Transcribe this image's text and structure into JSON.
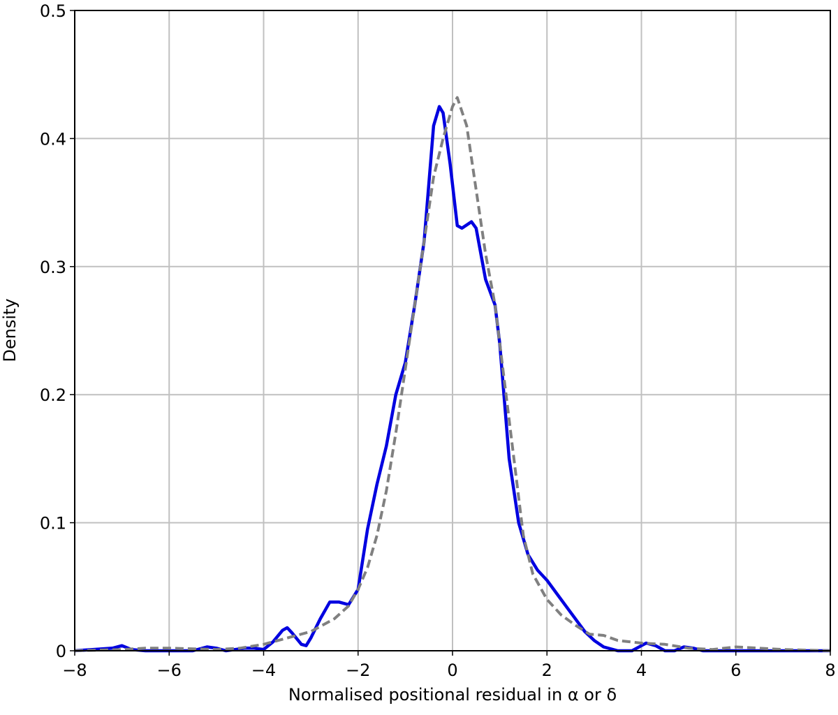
{
  "chart_data": {
    "type": "line",
    "xlabel": "Normalised positional residual in α or δ",
    "ylabel": "Density",
    "xlim": [
      -8,
      8
    ],
    "ylim": [
      0,
      0.5
    ],
    "xticks": [
      {
        "value": -8,
        "label": "−8"
      },
      {
        "value": -6,
        "label": "−6"
      },
      {
        "value": -4,
        "label": "−4"
      },
      {
        "value": -2,
        "label": "−2"
      },
      0,
      2,
      4,
      6,
      8
    ],
    "yticks": [
      0,
      0.1,
      0.2,
      0.3,
      0.4,
      0.5
    ],
    "grid": true,
    "series": [
      {
        "color": "#0000e0",
        "dashed": false,
        "x": [
          -8,
          -7.2,
          -7.0,
          -6.8,
          -6.5,
          -5.5,
          -5.2,
          -5.0,
          -4.8,
          -4.4,
          -4.2,
          -4.0,
          -3.8,
          -3.6,
          -3.5,
          -3.4,
          -3.2,
          -3.1,
          -3.0,
          -2.8,
          -2.6,
          -2.4,
          -2.2,
          -2.0,
          -1.8,
          -1.6,
          -1.4,
          -1.2,
          -1.0,
          -0.8,
          -0.6,
          -0.4,
          -0.28,
          -0.2,
          -0.05,
          0.1,
          0.2,
          0.4,
          0.5,
          0.7,
          0.9,
          1.0,
          1.2,
          1.4,
          1.6,
          1.8,
          2.0,
          2.2,
          2.4,
          2.6,
          2.8,
          3.0,
          3.2,
          3.5,
          3.8,
          4.0,
          4.1,
          4.3,
          4.5,
          4.7,
          4.9,
          5.1,
          5.3,
          8
        ],
        "values": [
          0,
          0.002,
          0.004,
          0.001,
          0,
          0,
          0.003,
          0.002,
          0,
          0.002,
          0.002,
          0.001,
          0.007,
          0.016,
          0.018,
          0.014,
          0.005,
          0.004,
          0.01,
          0.025,
          0.038,
          0.038,
          0.036,
          0.048,
          0.095,
          0.13,
          0.16,
          0.2,
          0.225,
          0.27,
          0.32,
          0.41,
          0.425,
          0.42,
          0.38,
          0.332,
          0.33,
          0.335,
          0.33,
          0.29,
          0.27,
          0.24,
          0.15,
          0.1,
          0.075,
          0.063,
          0.055,
          0.045,
          0.035,
          0.025,
          0.015,
          0.008,
          0.003,
          0,
          0,
          0.004,
          0.006,
          0.004,
          0,
          0,
          0.003,
          0.002,
          0,
          0
        ]
      },
      {
        "color": "#808080",
        "dashed": true,
        "x": [
          -8,
          -7,
          -6.5,
          -6,
          -5,
          -4.5,
          -4,
          -3.5,
          -3,
          -2.5,
          -2.2,
          -2.0,
          -1.8,
          -1.6,
          -1.4,
          -1.2,
          -1.0,
          -0.8,
          -0.6,
          -0.4,
          -0.2,
          0,
          0.1,
          0.3,
          0.5,
          0.7,
          0.9,
          1.1,
          1.3,
          1.5,
          1.7,
          2.0,
          2.3,
          2.6,
          2.9,
          3.2,
          3.5,
          4.0,
          4.5,
          5.0,
          5.5,
          6.0,
          6.5,
          7.0,
          8
        ],
        "values": [
          0,
          0.001,
          0.002,
          0.002,
          0.001,
          0.002,
          0.005,
          0.01,
          0.015,
          0.025,
          0.035,
          0.048,
          0.065,
          0.09,
          0.125,
          0.17,
          0.22,
          0.27,
          0.32,
          0.37,
          0.4,
          0.425,
          0.432,
          0.41,
          0.36,
          0.31,
          0.27,
          0.21,
          0.15,
          0.09,
          0.06,
          0.04,
          0.028,
          0.02,
          0.013,
          0.012,
          0.008,
          0.006,
          0.005,
          0.002,
          0.001,
          0.003,
          0.002,
          0.001,
          0
        ]
      }
    ]
  }
}
